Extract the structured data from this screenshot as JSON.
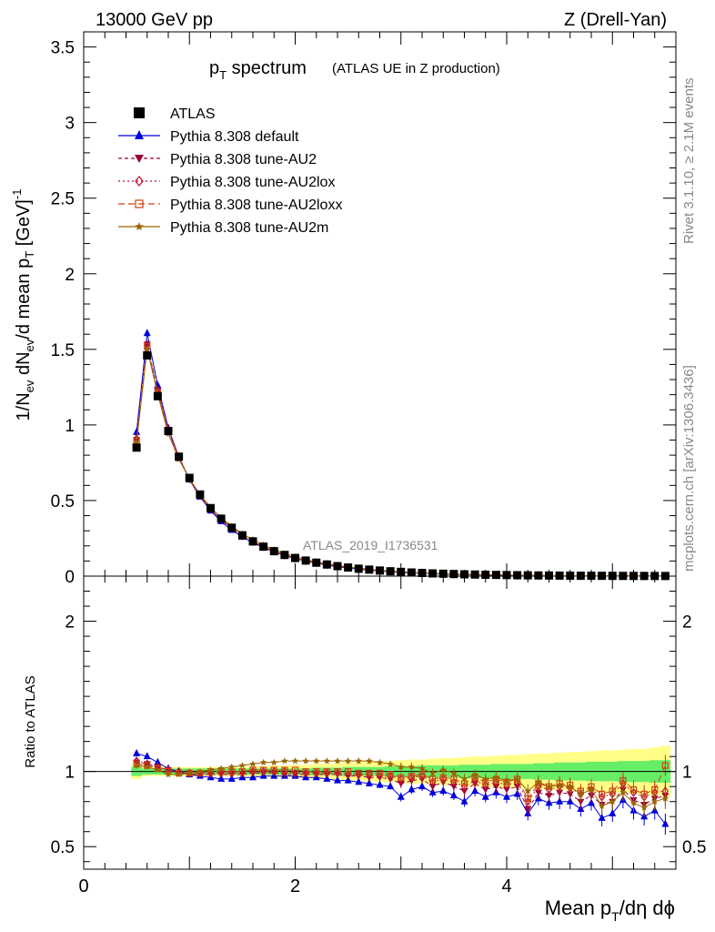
{
  "header": {
    "left": "13000 GeV pp",
    "right": "Z (Drell-Yan)"
  },
  "side": {
    "rivet": "Rivet 3.1.10, ≥ 2.1M events",
    "mcplots": "mcplots.cern.ch [arXiv:1306.3436]"
  },
  "chart_data": {
    "type": "line",
    "title": "p_T spectrum",
    "subtitle": "(ATLAS UE in Z production)",
    "watermark": "ATLAS_2019_I1736531",
    "xlabel": "Mean p_T/dη dϕ",
    "ylabel": "1/N_ev dN_ev/d mean p_T [GeV]^-1",
    "ratio_ylabel": "Ratio to ATLAS",
    "xlim": [
      0,
      5.6
    ],
    "ylim": [
      0,
      3.6
    ],
    "ratio_ylim": [
      0.35,
      2.3
    ],
    "x_ticks": [
      "0",
      "2",
      "4"
    ],
    "y_ticks": [
      "0",
      "0.5",
      "1",
      "1.5",
      "2",
      "2.5",
      "3",
      "3.5"
    ],
    "ratio_ticks": [
      "0.5",
      "1",
      "2"
    ],
    "legend_position": "top-left",
    "colors": {
      "data": "#000000",
      "default": "#0000dd",
      "au2": "#990033",
      "au2lox": "#bb1133",
      "au2loxx": "#cc4411",
      "au2m": "#996600",
      "band_inner": "#66ee66",
      "band_outer": "#ffff88"
    },
    "x": [
      0.5,
      0.6,
      0.7,
      0.8,
      0.9,
      1.0,
      1.1,
      1.2,
      1.3,
      1.4,
      1.5,
      1.6,
      1.7,
      1.8,
      1.9,
      2.0,
      2.1,
      2.2,
      2.3,
      2.4,
      2.5,
      2.6,
      2.7,
      2.8,
      2.9,
      3.0,
      3.1,
      3.2,
      3.3,
      3.4,
      3.5,
      3.6,
      3.7,
      3.8,
      3.9,
      4.0,
      4.1,
      4.2,
      4.3,
      4.4,
      4.5,
      4.6,
      4.7,
      4.8,
      4.9,
      5.0,
      5.1,
      5.2,
      5.3,
      5.4,
      5.5
    ],
    "data_values": [
      0.85,
      1.46,
      1.19,
      0.96,
      0.79,
      0.65,
      0.54,
      0.45,
      0.38,
      0.32,
      0.27,
      0.23,
      0.195,
      0.165,
      0.14,
      0.12,
      0.103,
      0.089,
      0.077,
      0.066,
      0.057,
      0.049,
      0.043,
      0.037,
      0.032,
      0.028,
      0.024,
      0.021,
      0.018,
      0.016,
      0.014,
      0.012,
      0.0105,
      0.009,
      0.008,
      0.007,
      0.006,
      0.0052,
      0.0045,
      0.004,
      0.0035,
      0.003,
      0.0026,
      0.0023,
      0.002,
      0.0017,
      0.0015,
      0.0013,
      0.0011,
      0.001,
      0.0009
    ],
    "band_inner": [
      0.03,
      0.02,
      0.02,
      0.02,
      0.02,
      0.02,
      0.02,
      0.02,
      0.02,
      0.02,
      0.02,
      0.02,
      0.02,
      0.02,
      0.02,
      0.02,
      0.02,
      0.025,
      0.025,
      0.025,
      0.03,
      0.03,
      0.03,
      0.03,
      0.035,
      0.035,
      0.035,
      0.04,
      0.04,
      0.04,
      0.04,
      0.045,
      0.045,
      0.045,
      0.05,
      0.05,
      0.05,
      0.05,
      0.055,
      0.055,
      0.06,
      0.06,
      0.06,
      0.065,
      0.065,
      0.065,
      0.07,
      0.07,
      0.07,
      0.075,
      0.075
    ],
    "band_outer": [
      0.05,
      0.03,
      0.03,
      0.03,
      0.03,
      0.03,
      0.03,
      0.03,
      0.03,
      0.03,
      0.03,
      0.035,
      0.035,
      0.04,
      0.04,
      0.045,
      0.045,
      0.05,
      0.05,
      0.055,
      0.06,
      0.06,
      0.065,
      0.07,
      0.07,
      0.075,
      0.08,
      0.08,
      0.085,
      0.09,
      0.09,
      0.095,
      0.1,
      0.1,
      0.105,
      0.11,
      0.11,
      0.115,
      0.12,
      0.12,
      0.125,
      0.13,
      0.13,
      0.135,
      0.14,
      0.14,
      0.145,
      0.15,
      0.15,
      0.16,
      0.17
    ],
    "series": [
      {
        "name": "ATLAS",
        "key": "data",
        "marker": "square"
      },
      {
        "name": "Pythia 8.308 default",
        "key": "default",
        "marker": "triangle-up",
        "dash": "",
        "ratio": [
          1.12,
          1.1,
          1.06,
          1.02,
          1.0,
          0.98,
          0.97,
          0.96,
          0.95,
          0.95,
          0.96,
          0.96,
          0.97,
          0.97,
          0.97,
          0.97,
          0.96,
          0.96,
          0.95,
          0.94,
          0.94,
          0.93,
          0.92,
          0.91,
          0.9,
          0.83,
          0.88,
          0.9,
          0.86,
          0.87,
          0.84,
          0.8,
          0.87,
          0.83,
          0.86,
          0.83,
          0.85,
          0.72,
          0.82,
          0.79,
          0.8,
          0.8,
          0.75,
          0.79,
          0.69,
          0.72,
          0.81,
          0.74,
          0.7,
          0.74,
          0.65
        ],
        "err": [
          0.02,
          0.01,
          0.01,
          0.01,
          0.01,
          0.01,
          0.01,
          0.01,
          0.01,
          0.01,
          0.01,
          0.01,
          0.01,
          0.01,
          0.01,
          0.01,
          0.015,
          0.015,
          0.015,
          0.015,
          0.02,
          0.02,
          0.02,
          0.02,
          0.02,
          0.03,
          0.03,
          0.03,
          0.03,
          0.03,
          0.03,
          0.035,
          0.035,
          0.035,
          0.04,
          0.04,
          0.04,
          0.045,
          0.045,
          0.045,
          0.05,
          0.05,
          0.05,
          0.05,
          0.055,
          0.055,
          0.055,
          0.06,
          0.06,
          0.06,
          0.07
        ]
      },
      {
        "name": "Pythia 8.308 tune-AU2",
        "key": "au2",
        "marker": "triangle-down",
        "dash": "4,3",
        "ratio": [
          1.06,
          1.05,
          1.03,
          1.01,
          0.99,
          0.98,
          0.98,
          0.98,
          0.98,
          0.98,
          0.98,
          0.99,
          0.99,
          0.99,
          0.98,
          0.98,
          0.98,
          0.98,
          0.98,
          0.98,
          0.97,
          0.97,
          0.96,
          0.96,
          0.95,
          0.92,
          0.94,
          0.95,
          0.9,
          0.93,
          0.9,
          0.87,
          0.92,
          0.88,
          0.9,
          0.88,
          0.9,
          0.75,
          0.86,
          0.84,
          0.86,
          0.85,
          0.8,
          0.84,
          0.78,
          0.8,
          0.88,
          0.81,
          0.78,
          0.82,
          0.84
        ],
        "err": [
          0.02,
          0.01,
          0.01,
          0.01,
          0.01,
          0.01,
          0.01,
          0.01,
          0.01,
          0.01,
          0.01,
          0.01,
          0.01,
          0.01,
          0.01,
          0.01,
          0.015,
          0.015,
          0.015,
          0.015,
          0.02,
          0.02,
          0.02,
          0.02,
          0.02,
          0.03,
          0.03,
          0.03,
          0.03,
          0.03,
          0.03,
          0.035,
          0.035,
          0.035,
          0.04,
          0.04,
          0.04,
          0.045,
          0.045,
          0.045,
          0.05,
          0.05,
          0.05,
          0.05,
          0.055,
          0.055,
          0.055,
          0.06,
          0.06,
          0.06,
          0.07
        ]
      },
      {
        "name": "Pythia 8.308 tune-AU2lox",
        "key": "au2lox",
        "marker": "diamond-open",
        "dash": "2,3",
        "ratio": [
          1.07,
          1.05,
          1.03,
          1.01,
          1.0,
          0.99,
          0.99,
          0.99,
          0.99,
          0.99,
          0.99,
          1.0,
          1.0,
          1.0,
          1.0,
          0.99,
          0.99,
          0.99,
          0.99,
          0.99,
          0.98,
          0.98,
          0.98,
          0.97,
          0.97,
          0.95,
          0.96,
          0.97,
          0.93,
          0.95,
          0.93,
          0.9,
          0.94,
          0.91,
          0.93,
          0.91,
          0.93,
          0.8,
          0.9,
          0.88,
          0.9,
          0.89,
          0.85,
          0.88,
          0.83,
          0.85,
          0.92,
          0.86,
          0.83,
          0.86,
          0.87
        ],
        "err": [
          0.02,
          0.01,
          0.01,
          0.01,
          0.01,
          0.01,
          0.01,
          0.01,
          0.01,
          0.01,
          0.01,
          0.01,
          0.01,
          0.01,
          0.01,
          0.01,
          0.015,
          0.015,
          0.015,
          0.015,
          0.02,
          0.02,
          0.02,
          0.02,
          0.02,
          0.03,
          0.03,
          0.03,
          0.03,
          0.03,
          0.03,
          0.035,
          0.035,
          0.035,
          0.04,
          0.04,
          0.04,
          0.045,
          0.045,
          0.045,
          0.05,
          0.05,
          0.05,
          0.05,
          0.055,
          0.055,
          0.055,
          0.06,
          0.06,
          0.06,
          0.07
        ]
      },
      {
        "name": "Pythia 8.308 tune-AU2loxx",
        "key": "au2loxx",
        "marker": "square-open",
        "dash": "7,4",
        "ratio": [
          1.05,
          1.04,
          1.02,
          1.0,
          0.99,
          0.99,
          0.99,
          1.0,
          1.0,
          1.0,
          1.0,
          1.01,
          1.01,
          1.01,
          1.01,
          1.01,
          1.0,
          1.0,
          1.0,
          1.0,
          1.0,
          0.99,
          0.99,
          0.99,
          0.98,
          0.96,
          0.97,
          0.98,
          0.95,
          0.96,
          0.95,
          0.92,
          0.96,
          0.93,
          0.95,
          0.93,
          0.95,
          0.82,
          0.92,
          0.9,
          0.92,
          0.91,
          0.87,
          0.9,
          0.85,
          0.87,
          0.94,
          0.88,
          0.85,
          0.88,
          1.04
        ],
        "err": [
          0.02,
          0.01,
          0.01,
          0.01,
          0.01,
          0.01,
          0.01,
          0.01,
          0.01,
          0.01,
          0.01,
          0.01,
          0.01,
          0.01,
          0.01,
          0.01,
          0.015,
          0.015,
          0.015,
          0.015,
          0.02,
          0.02,
          0.02,
          0.02,
          0.02,
          0.03,
          0.03,
          0.03,
          0.03,
          0.03,
          0.03,
          0.035,
          0.035,
          0.035,
          0.04,
          0.04,
          0.04,
          0.045,
          0.045,
          0.045,
          0.05,
          0.05,
          0.05,
          0.05,
          0.055,
          0.055,
          0.055,
          0.06,
          0.06,
          0.06,
          0.07
        ]
      },
      {
        "name": "Pythia 8.308 tune-AU2m",
        "key": "au2m",
        "marker": "star",
        "dash": "",
        "ratio": [
          1.04,
          1.03,
          1.01,
          0.98,
          0.98,
          0.99,
          1.0,
          1.01,
          1.02,
          1.03,
          1.04,
          1.05,
          1.06,
          1.06,
          1.07,
          1.07,
          1.07,
          1.07,
          1.07,
          1.07,
          1.07,
          1.07,
          1.07,
          1.06,
          1.05,
          1.03,
          1.03,
          1.02,
          0.99,
          1.01,
          0.99,
          0.95,
          0.98,
          0.95,
          0.96,
          0.94,
          0.95,
          0.87,
          0.93,
          0.9,
          0.91,
          0.9,
          0.85,
          0.88,
          0.77,
          0.8,
          0.86,
          0.79,
          0.76,
          0.8,
          0.82
        ],
        "err": [
          0.02,
          0.01,
          0.01,
          0.01,
          0.01,
          0.01,
          0.01,
          0.01,
          0.01,
          0.01,
          0.01,
          0.01,
          0.01,
          0.01,
          0.01,
          0.01,
          0.015,
          0.015,
          0.015,
          0.015,
          0.02,
          0.02,
          0.02,
          0.02,
          0.02,
          0.03,
          0.03,
          0.03,
          0.03,
          0.03,
          0.03,
          0.035,
          0.035,
          0.035,
          0.04,
          0.04,
          0.04,
          0.045,
          0.045,
          0.045,
          0.05,
          0.05,
          0.05,
          0.05,
          0.055,
          0.055,
          0.055,
          0.06,
          0.06,
          0.06,
          0.07
        ]
      }
    ]
  }
}
